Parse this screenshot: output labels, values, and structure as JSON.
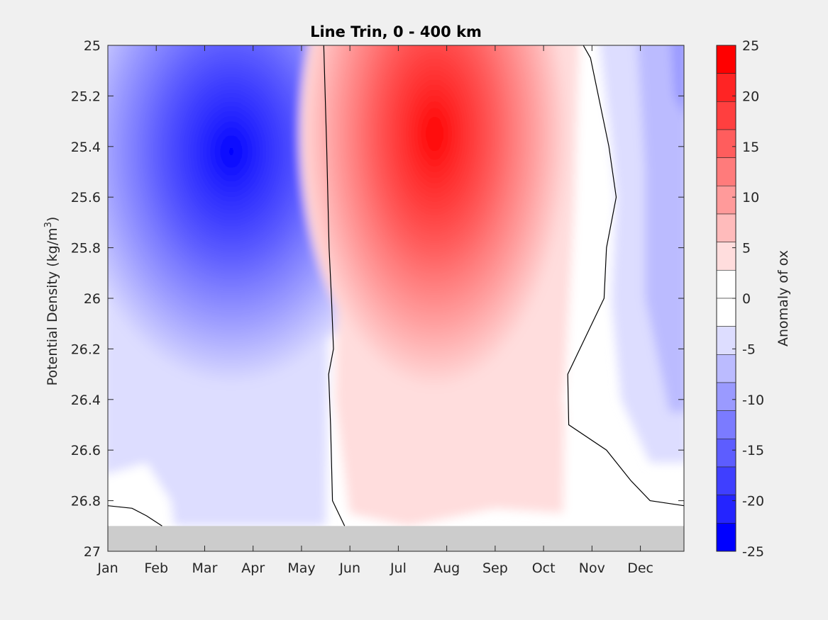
{
  "chart_data": {
    "type": "heatmap",
    "title": "Line Trin, 0 - 400 km",
    "ylabel": "Potential Density (kg/m",
    "ylabel_superscript": "3",
    "ylabel_suffix": ")",
    "xlabel": "",
    "x_tick_labels": [
      "Jan",
      "Feb",
      "Mar",
      "Apr",
      "May",
      "Jun",
      "Jul",
      "Aug",
      "Sep",
      "Oct",
      "Nov",
      "Dec"
    ],
    "x_ticks": [
      1,
      2,
      3,
      4,
      5,
      6,
      7,
      8,
      9,
      10,
      11,
      12
    ],
    "xlim": [
      1,
      12.9
    ],
    "ylim": [
      25,
      27
    ],
    "y_reversed": true,
    "y_ticks": [
      25,
      25.2,
      25.4,
      25.6,
      25.8,
      26,
      26.2,
      26.4,
      26.6,
      26.8,
      27
    ],
    "y_tick_labels": [
      "25",
      "25.2",
      "25.4",
      "25.6",
      "25.8",
      "26",
      "26.2",
      "26.4",
      "26.6",
      "26.8",
      "27"
    ],
    "no_data_below_density": 26.9,
    "no_data_color": "#cccccc",
    "colorbar": {
      "label": "Anomaly of ox",
      "limits": [
        -25,
        25
      ],
      "ticks": [
        25,
        20,
        15,
        10,
        5,
        0,
        -5,
        -10,
        -15,
        -20,
        -25
      ],
      "tick_labels": [
        "25",
        "20",
        "15",
        "10",
        "5",
        "0",
        "-5",
        "-10",
        "-15",
        "-20",
        "-25"
      ],
      "colors_top_to_bottom": [
        "#ff0000",
        "#ff2424",
        "#ff3f3f",
        "#ff5d5d",
        "#ff7b7b",
        "#ff9a9a",
        "#ffbbbb",
        "#ffdddd",
        "#ffffff",
        "#ffffff",
        "#ddddff",
        "#bbbbff",
        "#9a9aff",
        "#7b7bff",
        "#5d5dff",
        "#3f3fff",
        "#2424ff",
        "#0000ff"
      ]
    },
    "features": [
      {
        "name": "negative-core",
        "month": 3.55,
        "density": 25.42,
        "value": -24
      },
      {
        "name": "positive-core",
        "month": 7.75,
        "density": 25.35,
        "value": 24
      }
    ],
    "zero_contours": [
      {
        "month": [
          5.46,
          5.52,
          5.57,
          5.62,
          5.66,
          5.56,
          5.6,
          5.64,
          5.89
        ],
        "density": [
          25,
          25.4,
          25.8,
          26.0,
          26.2,
          26.3,
          26.5,
          26.8,
          26.9
        ]
      },
      {
        "month": [
          10.82,
          10.97,
          11.35,
          11.5,
          11.3,
          11.25,
          10.5,
          10.52,
          11.3,
          11.8,
          12.2,
          12.9
        ],
        "density": [
          25,
          25.05,
          25.4,
          25.6,
          25.8,
          26.0,
          26.3,
          26.5,
          26.6,
          26.72,
          26.8,
          26.82
        ]
      },
      {
        "month": [
          1,
          1.5,
          1.8,
          2.12
        ],
        "density": [
          26.82,
          26.83,
          26.86,
          26.9
        ]
      }
    ]
  }
}
